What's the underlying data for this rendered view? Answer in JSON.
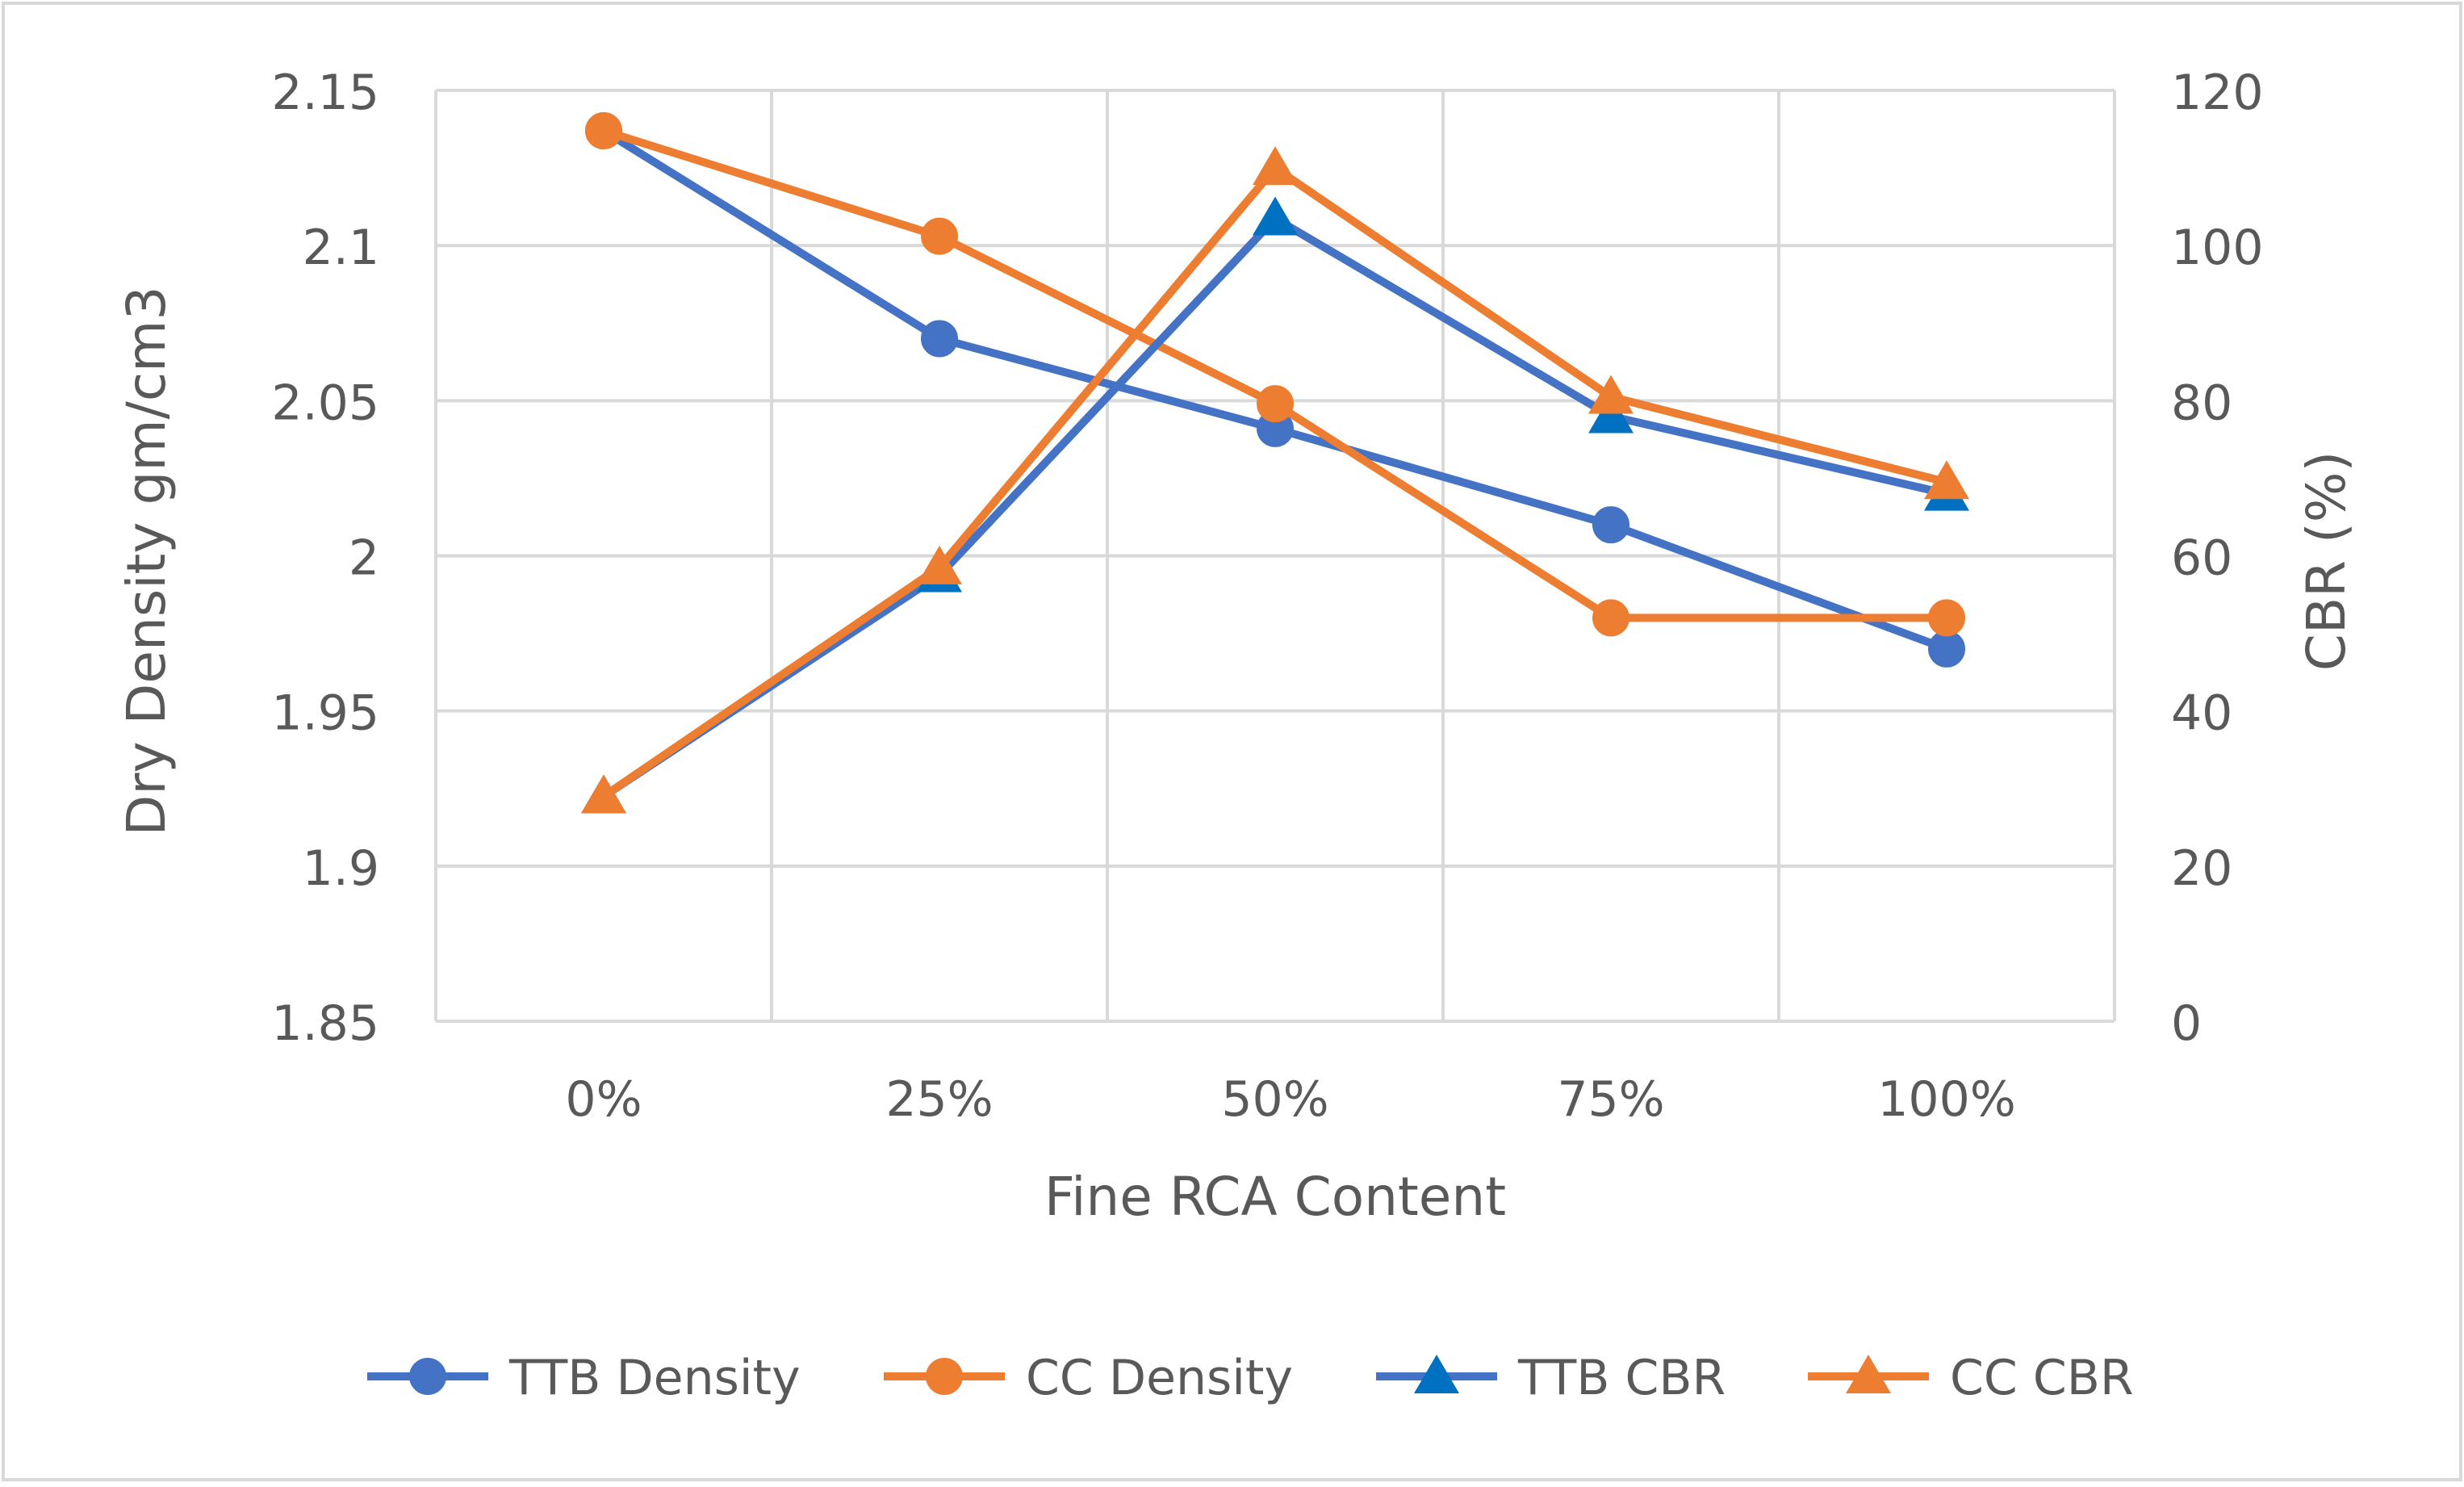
{
  "chart_data": {
    "type": "line",
    "title": "",
    "xlabel": "Fine RCA Content",
    "ylabel": "Dry Density gm/cm3",
    "y2label": "CBR (%)",
    "categories": [
      "0%",
      "25%",
      "50%",
      "75%",
      "100%"
    ],
    "ylim": [
      1.85,
      2.15
    ],
    "y_ticks": [
      "1.85",
      "1.9",
      "1.95",
      "2",
      "2.05",
      "2.1",
      "2.15"
    ],
    "y_tick_values": [
      1.85,
      1.9,
      1.95,
      2.0,
      2.05,
      2.1,
      2.15
    ],
    "y2lim": [
      0,
      120
    ],
    "y2_ticks": [
      "0",
      "20",
      "40",
      "60",
      "80",
      "100",
      "120"
    ],
    "y2_tick_values": [
      0,
      20,
      40,
      60,
      80,
      100,
      120
    ],
    "grid": true,
    "legend_position": "bottom",
    "series": [
      {
        "name": "TTB Density",
        "axis": "left",
        "color": "#4472C4",
        "marker": "circle",
        "values": [
          2.137,
          2.07,
          2.041,
          2.01,
          1.97
        ]
      },
      {
        "name": "CC Density",
        "axis": "left",
        "color": "#ED7D31",
        "marker": "circle",
        "values": [
          2.137,
          2.103,
          2.049,
          1.98,
          1.98
        ]
      },
      {
        "name": "TTB CBR",
        "axis": "right",
        "color": "#4472C4",
        "marker_color": "#0070C0",
        "marker": "triangle",
        "values": [
          29,
          57.5,
          103.5,
          78,
          68
        ]
      },
      {
        "name": "CC CBR",
        "axis": "right",
        "color": "#ED7D31",
        "marker": "triangle",
        "values": [
          29,
          58.5,
          110,
          80.5,
          69.5
        ]
      }
    ]
  }
}
